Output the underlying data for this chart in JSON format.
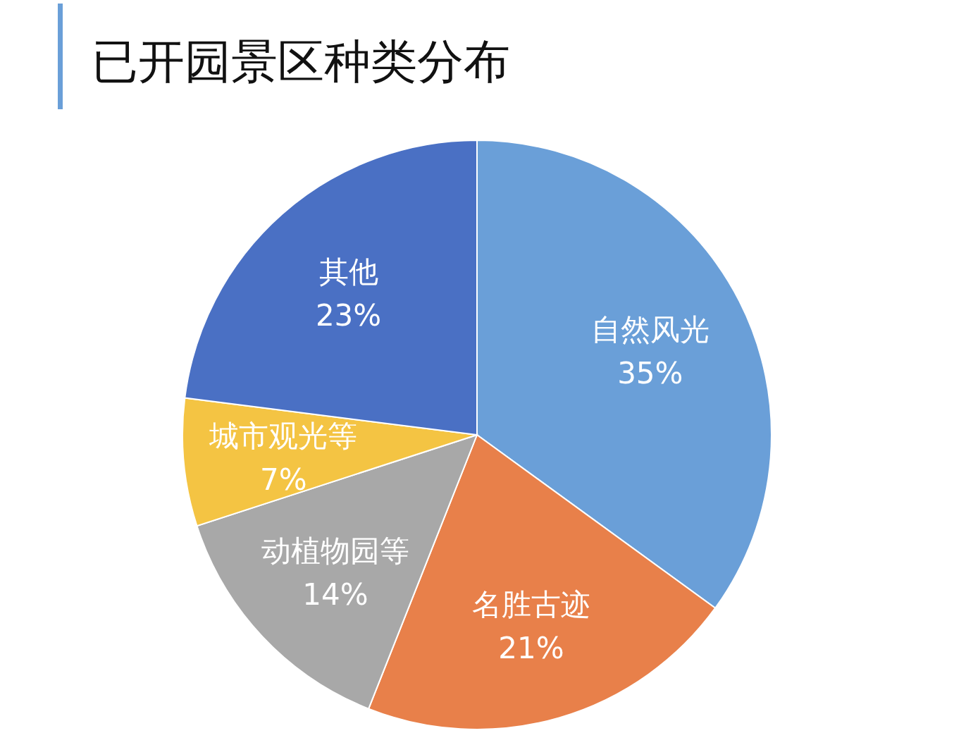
{
  "chart_data": {
    "type": "pie",
    "title": "已开园景区种类分布",
    "categories": [
      "自然风光",
      "名胜古迹",
      "动植物园等",
      "城市观光等",
      "其他"
    ],
    "values": [
      35,
      21,
      14,
      7,
      23
    ],
    "colors": [
      "#6a9fd8",
      "#e8804a",
      "#a8a8a8",
      "#f4c443",
      "#4a70c4"
    ],
    "value_labels": [
      "35%",
      "21%",
      "14%",
      "7%",
      "23%"
    ]
  }
}
